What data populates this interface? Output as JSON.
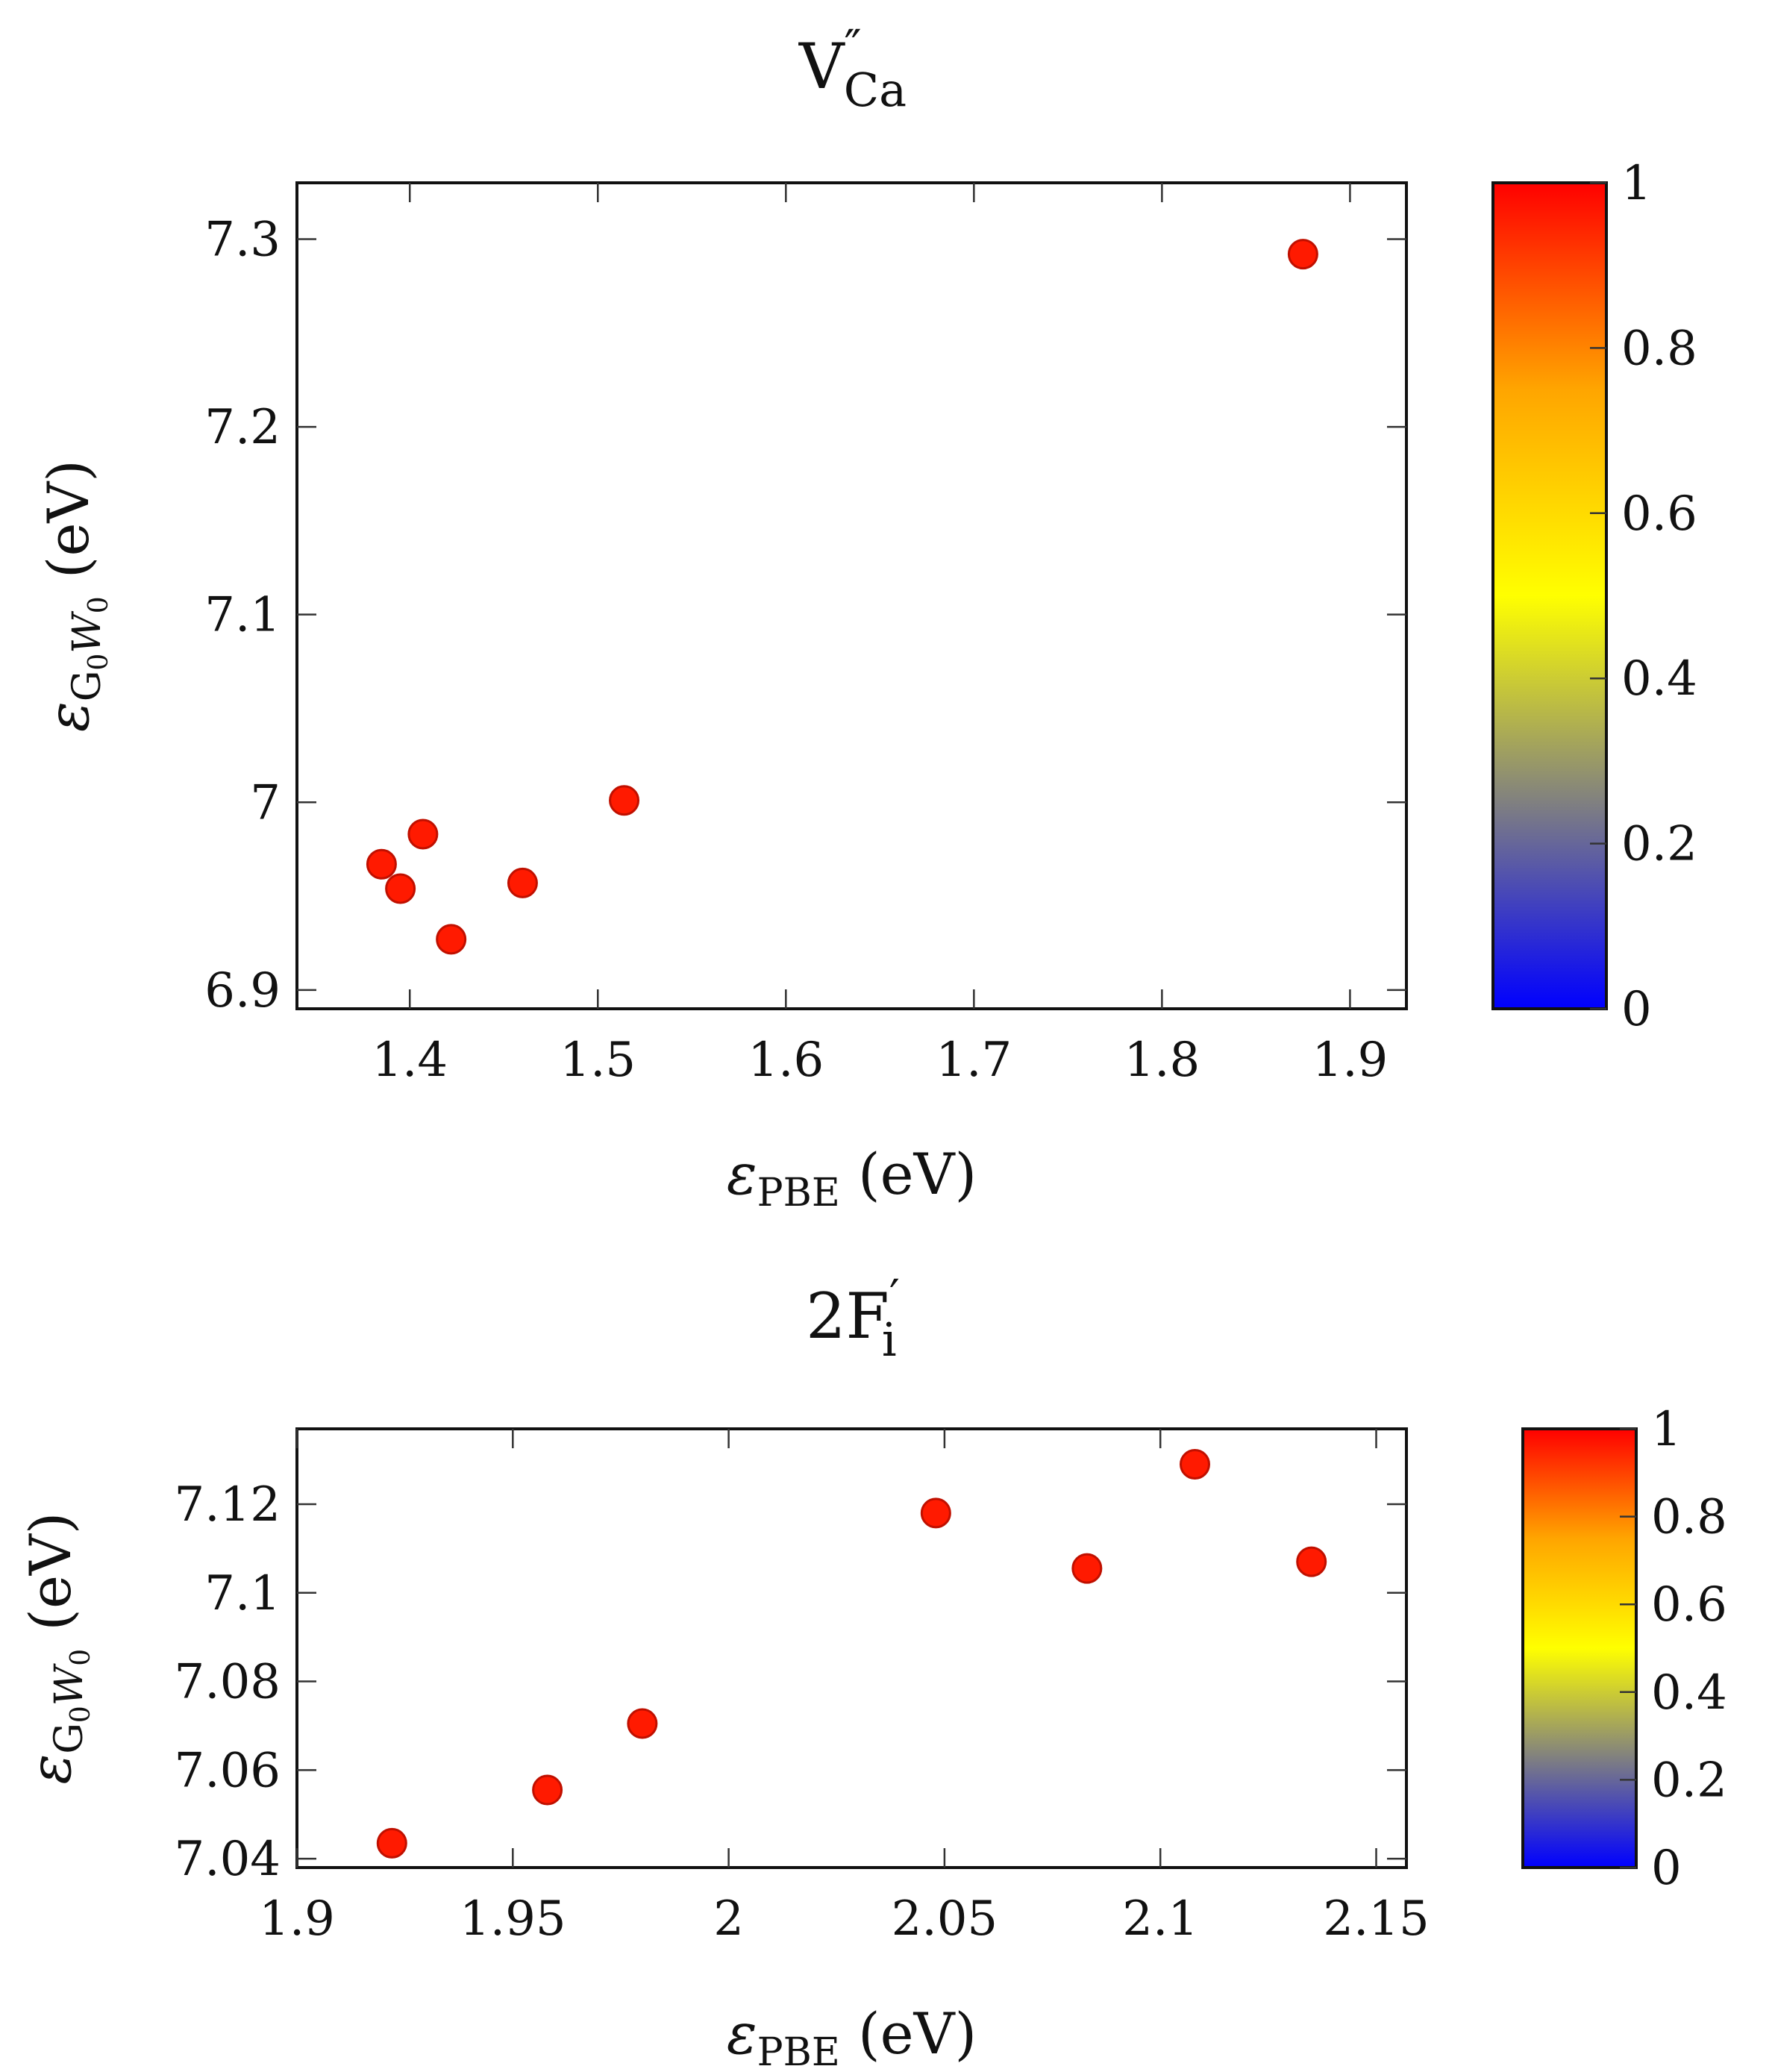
{
  "chart_data": [
    {
      "type": "scatter",
      "title": "V''Ca",
      "title_parts": {
        "base": "V",
        "sup": "″",
        "sub": "Ca"
      },
      "xlabel": "εPBE (eV)",
      "xlabel_parts": {
        "symbol": "ε",
        "sub": "PBE",
        "unit": "(eV)"
      },
      "ylabel": "εG0W0 (eV)",
      "ylabel_parts": {
        "symbol": "ε",
        "sub_a": "G",
        "sub_a_sub": "0",
        "sub_b": "W",
        "sub_b_sub": "0",
        "unit": "(eV)"
      },
      "xlim": [
        1.34,
        1.93
      ],
      "ylim": [
        6.89,
        7.33
      ],
      "xticks": [
        1.4,
        1.5,
        1.6,
        1.7,
        1.8,
        1.9
      ],
      "xtick_labels": [
        "1.4",
        "1.5",
        "1.6",
        "1.7",
        "1.8",
        "1.9"
      ],
      "yticks": [
        6.9,
        7.0,
        7.1,
        7.2,
        7.3
      ],
      "ytick_labels": [
        "6.9",
        "7",
        "7.1",
        "7.2",
        "7.3"
      ],
      "points": [
        {
          "x": 1.385,
          "y": 6.967
        },
        {
          "x": 1.395,
          "y": 6.954
        },
        {
          "x": 1.407,
          "y": 6.983
        },
        {
          "x": 1.422,
          "y": 6.927
        },
        {
          "x": 1.46,
          "y": 6.957
        },
        {
          "x": 1.514,
          "y": 7.001
        },
        {
          "x": 1.875,
          "y": 7.292
        }
      ],
      "point_color": "#ff1a00",
      "point_edge_color": "#c01000",
      "colorbar": {
        "range": [
          0,
          1
        ],
        "ticks": [
          0,
          0.2,
          0.4,
          0.6,
          0.8,
          1
        ],
        "tick_labels": [
          "0",
          "0.2",
          "0.4",
          "0.6",
          "0.8",
          "1"
        ],
        "colormap": [
          "#0000ff",
          "#808080",
          "#ffff00",
          "#ffa500",
          "#ff0000"
        ]
      }
    },
    {
      "type": "scatter",
      "title": "2F'i",
      "title_parts": {
        "base": "2F",
        "sup": "′",
        "sub": "i"
      },
      "xlabel": "εPBE (eV)",
      "xlabel_parts": {
        "symbol": "ε",
        "sub": "PBE",
        "unit": "(eV)"
      },
      "ylabel": "εG0W0 (eV)",
      "ylabel_parts": {
        "symbol": "ε",
        "sub_a": "G",
        "sub_a_sub": "0",
        "sub_b": "W",
        "sub_b_sub": "0",
        "unit": "(eV)"
      },
      "xlim": [
        1.9,
        2.157
      ],
      "ylim": [
        7.038,
        7.137
      ],
      "xticks": [
        1.9,
        1.95,
        2.0,
        2.05,
        2.1,
        2.15
      ],
      "xtick_labels": [
        "1.9",
        "1.95",
        "2",
        "2.05",
        "2.1",
        "2.15"
      ],
      "yticks": [
        7.04,
        7.06,
        7.08,
        7.1,
        7.12
      ],
      "ytick_labels": [
        "7.04",
        "7.06",
        "7.08",
        "7.1",
        "7.12"
      ],
      "points": [
        {
          "x": 1.922,
          "y": 7.0435
        },
        {
          "x": 1.958,
          "y": 7.0555
        },
        {
          "x": 1.98,
          "y": 7.0705
        },
        {
          "x": 2.048,
          "y": 7.118
        },
        {
          "x": 2.083,
          "y": 7.1055
        },
        {
          "x": 2.108,
          "y": 7.129
        },
        {
          "x": 2.135,
          "y": 7.107
        }
      ],
      "point_color": "#ff1a00",
      "point_edge_color": "#c01000",
      "colorbar": {
        "range": [
          0,
          1
        ],
        "ticks": [
          0,
          0.2,
          0.4,
          0.6,
          0.8,
          1
        ],
        "tick_labels": [
          "0",
          "0.2",
          "0.4",
          "0.6",
          "0.8",
          "1"
        ],
        "colormap": [
          "#0000ff",
          "#808080",
          "#ffff00",
          "#ffa500",
          "#ff0000"
        ]
      }
    }
  ]
}
